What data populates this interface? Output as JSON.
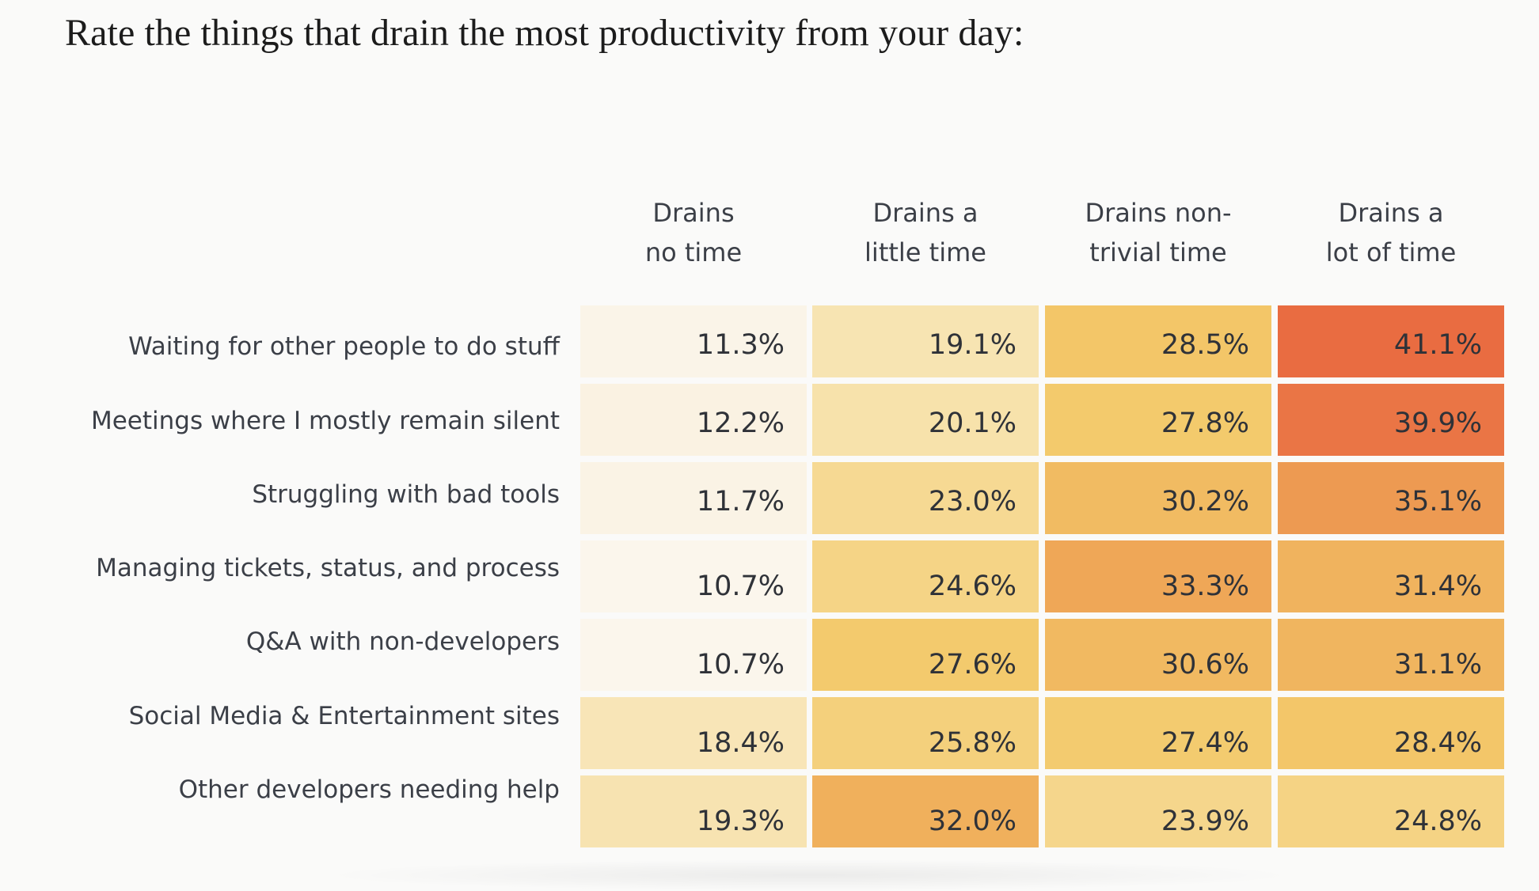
{
  "chart_data": {
    "type": "heatmap",
    "title": "Rate the things that drain the most productivity from your day:",
    "columns": [
      [
        "Drains",
        "no time"
      ],
      [
        "Drains a",
        "little time"
      ],
      [
        "Drains non-",
        "trivial time"
      ],
      [
        "Drains a",
        "lot of time"
      ]
    ],
    "rows": [
      "Waiting for other people to do stuff",
      "Meetings where I mostly remain silent",
      "Struggling with bad tools",
      "Managing tickets, status, and process",
      "Q&A with non-developers",
      "Social Media & Entertainment sites",
      "Other developers needing help"
    ],
    "values": [
      [
        11.3,
        19.1,
        28.5,
        41.1
      ],
      [
        12.2,
        20.1,
        27.8,
        39.9
      ],
      [
        11.7,
        23.0,
        30.2,
        35.1
      ],
      [
        10.7,
        24.6,
        33.3,
        31.4
      ],
      [
        10.7,
        27.6,
        30.6,
        31.1
      ],
      [
        18.4,
        25.8,
        27.4,
        28.4
      ],
      [
        19.3,
        32.0,
        23.9,
        24.8
      ]
    ],
    "value_suffix": "%",
    "color_scale": [
      "#fbf7f1",
      "#f7e2ac",
      "#f3c96a",
      "#eea355",
      "#e8653f"
    ],
    "color_domain": [
      10.0,
      20.0,
      28.0,
      34.0,
      42.0
    ]
  }
}
